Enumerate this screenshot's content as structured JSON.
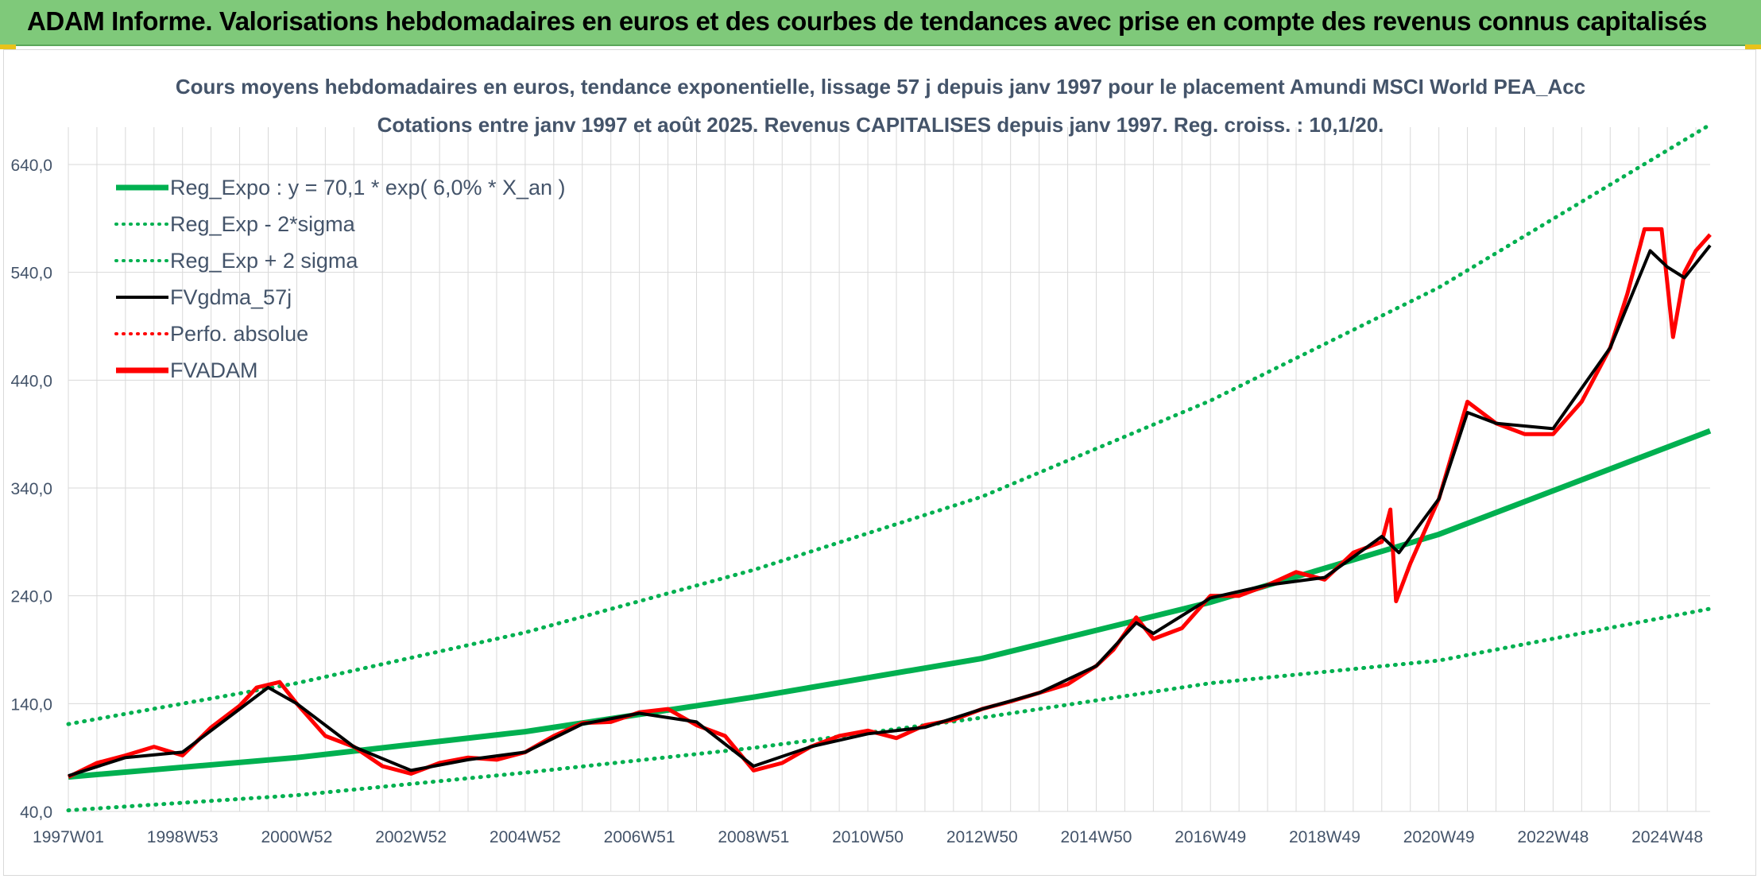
{
  "header": {
    "title": "ADAM Informe. Valorisations hebdomadaires en euros et des courbes de tendances avec prise en compte des revenus connus capitalisés"
  },
  "colors": {
    "header_bg": "#7fc97a",
    "reg_green": "#00b050",
    "fvadam_red": "#ff0000",
    "fvgdma_black": "#000000",
    "grid": "#d9d9d9",
    "text": "#44546a"
  },
  "chart_data": {
    "type": "line",
    "title": "Cours moyens hebdomadaires en euros, tendance exponentielle, lissage 57 j depuis janv 1997 pour le placement Amundi MSCI World PEA_Acc",
    "subtitle": "Cotations entre janv 1997 et août 2025. Revenus CAPITALISES depuis janv 1997. Reg. croiss. : 10,1/20.",
    "xlabel": "",
    "ylabel": "",
    "ylim": [
      40,
      690
    ],
    "yticks": [
      "40,0",
      "140,0",
      "240,0",
      "340,0",
      "440,0",
      "540,0",
      "640,0"
    ],
    "ytick_values": [
      40,
      140,
      240,
      340,
      440,
      540,
      640
    ],
    "xticks": [
      "1997W01",
      "1998W53",
      "2000W52",
      "2002W52",
      "2004W52",
      "2006W51",
      "2008W51",
      "2010W50",
      "2012W50",
      "2014W50",
      "2016W49",
      "2018W49",
      "2020W49",
      "2022W48",
      "2024W48"
    ],
    "xtick_years": [
      1997.0,
      1999.0,
      2001.0,
      2003.0,
      2005.0,
      2007.0,
      2009.0,
      2011.0,
      2013.0,
      2015.0,
      2017.0,
      2019.0,
      2021.0,
      2023.0,
      2025.0
    ],
    "xlim": [
      1997.0,
      2025.75
    ],
    "grid": true,
    "legend_position": "top-left",
    "legend": [
      {
        "label": "Reg_Expo : y = 70,1 * exp( 6,0% *  X_an )",
        "style": "solid-thick",
        "color": "#00b050"
      },
      {
        "label": "Reg_Exp - 2*sigma",
        "style": "dotted",
        "color": "#00b050"
      },
      {
        "label": "Reg_Exp + 2 sigma",
        "style": "dotted",
        "color": "#00b050"
      },
      {
        "label": "FVgdma_57j",
        "style": "solid",
        "color": "#000000"
      },
      {
        "label": "Perfo. absolue",
        "style": "dotted",
        "color": "#ff0000"
      },
      {
        "label": "FVADAM",
        "style": "solid-thick",
        "color": "#ff0000"
      }
    ],
    "series": [
      {
        "name": "Reg_Expo : y = 70,1 * exp( 6,0% *  X_an )",
        "x": [
          1997.0,
          2001.0,
          2005.0,
          2009.0,
          2013.0,
          2017.0,
          2021.0,
          2025.75
        ],
        "values": [
          72,
          90,
          114,
          146,
          182,
          234,
          297,
          393
        ]
      },
      {
        "name": "Reg_Exp - 2*sigma",
        "x": [
          1997.0,
          2001.0,
          2005.0,
          2009.0,
          2013.0,
          2017.0,
          2021.0,
          2025.75
        ],
        "values": [
          41,
          55,
          76,
          99,
          127,
          159,
          180,
          228
        ]
      },
      {
        "name": "Reg_Exp + 2 sigma",
        "x": [
          1997.0,
          2001.0,
          2005.0,
          2009.0,
          2013.0,
          2017.0,
          2021.0,
          2025.75
        ],
        "values": [
          121,
          159,
          206,
          264,
          332,
          421,
          526,
          677
        ]
      },
      {
        "name": "FVADAM",
        "x": [
          1997.0,
          1997.5,
          1998.0,
          1998.5,
          1999.0,
          1999.5,
          2000.0,
          2000.3,
          2000.7,
          2001.0,
          2001.5,
          2002.0,
          2002.5,
          2003.0,
          2003.5,
          2004.0,
          2004.5,
          2005.0,
          2005.5,
          2006.0,
          2006.5,
          2007.0,
          2007.5,
          2008.0,
          2008.5,
          2009.0,
          2009.5,
          2010.0,
          2010.5,
          2011.0,
          2011.5,
          2012.0,
          2012.5,
          2013.0,
          2013.5,
          2014.0,
          2014.5,
          2015.0,
          2015.3,
          2015.7,
          2016.0,
          2016.5,
          2017.0,
          2017.5,
          2018.0,
          2018.5,
          2019.0,
          2019.5,
          2020.0,
          2020.15,
          2020.25,
          2020.5,
          2021.0,
          2021.5,
          2022.0,
          2022.5,
          2023.0,
          2023.5,
          2024.0,
          2024.3,
          2024.6,
          2024.9,
          2025.1,
          2025.3,
          2025.5,
          2025.75
        ],
        "values": [
          72,
          85,
          92,
          100,
          92,
          118,
          138,
          155,
          160,
          140,
          110,
          100,
          82,
          75,
          85,
          90,
          88,
          95,
          110,
          122,
          123,
          132,
          135,
          120,
          110,
          78,
          85,
          100,
          110,
          115,
          108,
          120,
          125,
          135,
          142,
          150,
          158,
          175,
          190,
          220,
          200,
          210,
          240,
          240,
          250,
          262,
          255,
          280,
          290,
          320,
          235,
          270,
          330,
          420,
          400,
          390,
          390,
          420,
          470,
          520,
          580,
          580,
          480,
          540,
          560,
          575
        ]
      },
      {
        "name": "FVgdma_57j",
        "x": [
          1997.0,
          1998.0,
          1999.0,
          2000.0,
          2000.5,
          2001.0,
          2002.0,
          2003.0,
          2004.0,
          2005.0,
          2006.0,
          2007.0,
          2008.0,
          2009.0,
          2010.0,
          2011.0,
          2012.0,
          2013.0,
          2014.0,
          2015.0,
          2015.7,
          2016.0,
          2017.0,
          2018.0,
          2019.0,
          2020.0,
          2020.3,
          2021.0,
          2021.5,
          2022.0,
          2023.0,
          2024.0,
          2024.7,
          2025.0,
          2025.3,
          2025.75
        ],
        "values": [
          73,
          90,
          95,
          135,
          155,
          140,
          100,
          78,
          88,
          95,
          121,
          131,
          123,
          82,
          100,
          112,
          118,
          135,
          150,
          175,
          215,
          205,
          238,
          250,
          257,
          295,
          280,
          330,
          410,
          400,
          395,
          470,
          560,
          545,
          535,
          565
        ]
      }
    ]
  }
}
